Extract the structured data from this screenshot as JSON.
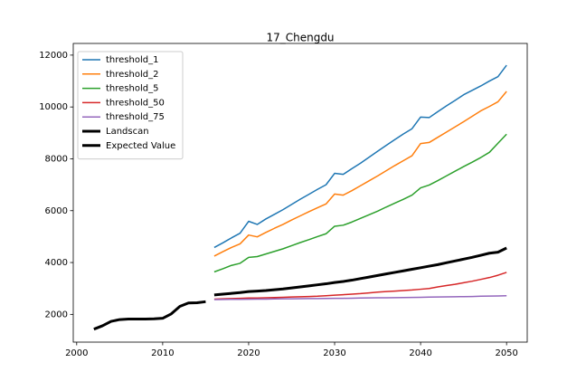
{
  "chart_data": {
    "type": "line",
    "title": "17_Chengdu",
    "x": [
      2002,
      2003,
      2004,
      2005,
      2006,
      2007,
      2008,
      2009,
      2010,
      2011,
      2012,
      2013,
      2014,
      2015,
      2016,
      2017,
      2018,
      2019,
      2020,
      2021,
      2022,
      2023,
      2024,
      2025,
      2026,
      2027,
      2028,
      2029,
      2030,
      2031,
      2032,
      2033,
      2034,
      2035,
      2036,
      2037,
      2038,
      2039,
      2040,
      2041,
      2042,
      2043,
      2044,
      2045,
      2046,
      2047,
      2048,
      2049,
      2050
    ],
    "series": [
      {
        "name": "threshold_1",
        "color": "#1f77b4",
        "width": 1.5,
        "values": [
          null,
          null,
          null,
          null,
          null,
          null,
          null,
          null,
          null,
          null,
          null,
          null,
          null,
          null,
          4580,
          4760,
          4950,
          5130,
          5590,
          5470,
          5680,
          5860,
          6040,
          6240,
          6440,
          6630,
          6820,
          7000,
          7440,
          7400,
          7620,
          7830,
          8060,
          8290,
          8520,
          8740,
          8960,
          9160,
          9610,
          9590,
          9820,
          10040,
          10250,
          10470,
          10640,
          10810,
          11000,
          11170,
          11610
        ]
      },
      {
        "name": "threshold_2",
        "color": "#ff7f0e",
        "width": 1.5,
        "values": [
          null,
          null,
          null,
          null,
          null,
          null,
          null,
          null,
          null,
          null,
          null,
          null,
          null,
          null,
          4250,
          4420,
          4580,
          4720,
          5060,
          4990,
          5160,
          5320,
          5470,
          5640,
          5800,
          5960,
          6110,
          6260,
          6640,
          6600,
          6770,
          6960,
          7150,
          7340,
          7540,
          7740,
          7930,
          8120,
          8590,
          8630,
          8830,
          9030,
          9230,
          9430,
          9640,
          9850,
          10020,
          10200,
          10600
        ]
      },
      {
        "name": "threshold_5",
        "color": "#2ca02c",
        "width": 1.5,
        "values": [
          null,
          null,
          null,
          null,
          null,
          null,
          null,
          null,
          null,
          null,
          null,
          null,
          null,
          null,
          3640,
          3760,
          3890,
          3970,
          4200,
          4230,
          4330,
          4430,
          4530,
          4650,
          4770,
          4880,
          5000,
          5110,
          5400,
          5440,
          5560,
          5700,
          5840,
          5980,
          6140,
          6290,
          6440,
          6600,
          6880,
          6990,
          7160,
          7340,
          7520,
          7700,
          7870,
          8050,
          8250,
          8600,
          8950
        ]
      },
      {
        "name": "threshold_50",
        "color": "#d62728",
        "width": 1.5,
        "values": [
          null,
          null,
          null,
          null,
          null,
          null,
          null,
          null,
          null,
          null,
          null,
          null,
          null,
          null,
          2590,
          2600,
          2610,
          2620,
          2630,
          2630,
          2640,
          2650,
          2660,
          2670,
          2680,
          2690,
          2700,
          2720,
          2740,
          2760,
          2780,
          2800,
          2830,
          2860,
          2880,
          2900,
          2920,
          2940,
          2970,
          3000,
          3060,
          3110,
          3160,
          3220,
          3280,
          3350,
          3420,
          3510,
          3620
        ]
      },
      {
        "name": "threshold_75",
        "color": "#9467bd",
        "width": 1.5,
        "values": [
          null,
          null,
          null,
          null,
          null,
          null,
          null,
          null,
          null,
          null,
          null,
          null,
          null,
          null,
          2570,
          2575,
          2580,
          2580,
          2585,
          2590,
          2590,
          2595,
          2600,
          2600,
          2605,
          2610,
          2610,
          2615,
          2620,
          2620,
          2625,
          2630,
          2635,
          2640,
          2640,
          2645,
          2650,
          2655,
          2660,
          2665,
          2670,
          2675,
          2680,
          2685,
          2690,
          2700,
          2705,
          2710,
          2720
        ]
      },
      {
        "name": "Landscan",
        "color": "#000000",
        "width": 3,
        "values": [
          1430,
          1560,
          1730,
          1800,
          1820,
          1820,
          1820,
          1830,
          1850,
          2020,
          2310,
          2440,
          2450,
          2490,
          null,
          null,
          null,
          null,
          null,
          null,
          null,
          null,
          null,
          null,
          null,
          null,
          null,
          null,
          null,
          null,
          null,
          null,
          null,
          null,
          null,
          null,
          null,
          null,
          null,
          null,
          null,
          null,
          null,
          null,
          null,
          null,
          null,
          null,
          null
        ]
      },
      {
        "name": "Expected Value",
        "color": "#000000",
        "width": 3,
        "values": [
          null,
          null,
          null,
          null,
          null,
          null,
          null,
          null,
          null,
          null,
          null,
          null,
          null,
          null,
          2750,
          2780,
          2810,
          2840,
          2880,
          2900,
          2920,
          2950,
          2980,
          3020,
          3060,
          3100,
          3140,
          3180,
          3230,
          3270,
          3320,
          3380,
          3440,
          3500,
          3560,
          3620,
          3680,
          3740,
          3800,
          3860,
          3920,
          3990,
          4060,
          4130,
          4200,
          4280,
          4360,
          4400,
          4560
        ]
      }
    ],
    "xlim": [
      1999.6,
      2052.4
    ],
    "xticks": [
      2000,
      2010,
      2020,
      2030,
      2040,
      2050
    ],
    "ylim": [
      930,
      12450
    ],
    "yticks": [
      2000,
      4000,
      6000,
      8000,
      10000,
      12000
    ],
    "legend": "upper left",
    "grid": false
  }
}
